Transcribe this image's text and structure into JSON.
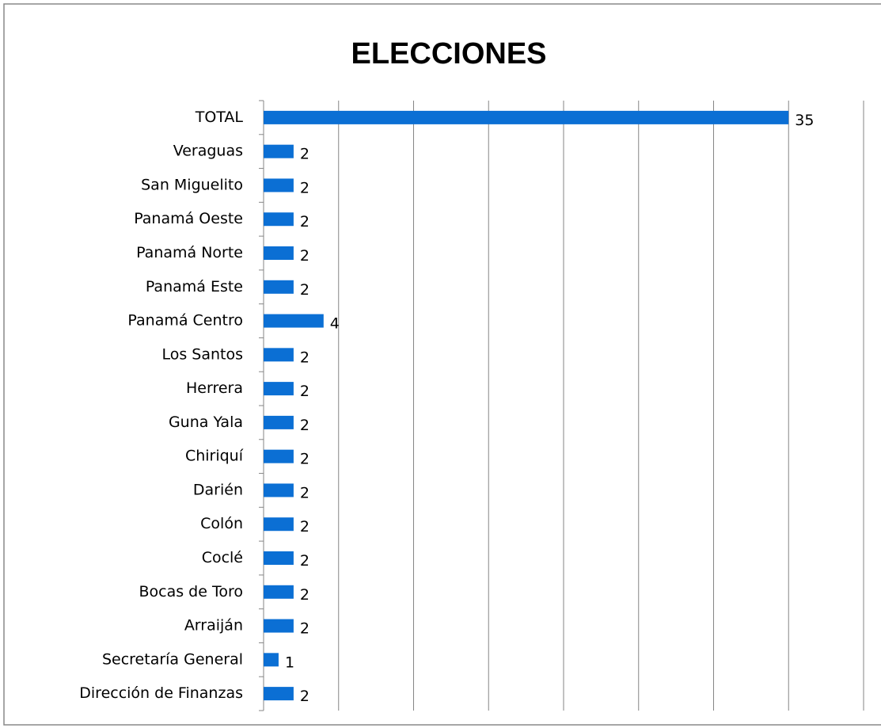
{
  "chart_data": {
    "type": "bar",
    "orientation": "horizontal",
    "title": "ELECCIONES",
    "categories": [
      "TOTAL",
      "Veraguas",
      "San Miguelito",
      "Panamá Oeste",
      "Panamá Norte",
      "Panamá Este",
      "Panamá Centro",
      "Los Santos",
      "Herrera",
      "Guna Yala",
      "Chiriquí",
      "Darién",
      "Colón",
      "Coclé",
      "Bocas de Toro",
      "Arraiján",
      "Secretaría General",
      "Dirección de Finanzas"
    ],
    "values": [
      35,
      2,
      2,
      2,
      2,
      2,
      4,
      2,
      2,
      2,
      2,
      2,
      2,
      2,
      2,
      2,
      1,
      2
    ],
    "color": "#0b6fd4",
    "xlim": [
      0,
      40
    ],
    "xticks": [
      0,
      5,
      10,
      15,
      20,
      25,
      30,
      35,
      40
    ],
    "grid": true
  }
}
